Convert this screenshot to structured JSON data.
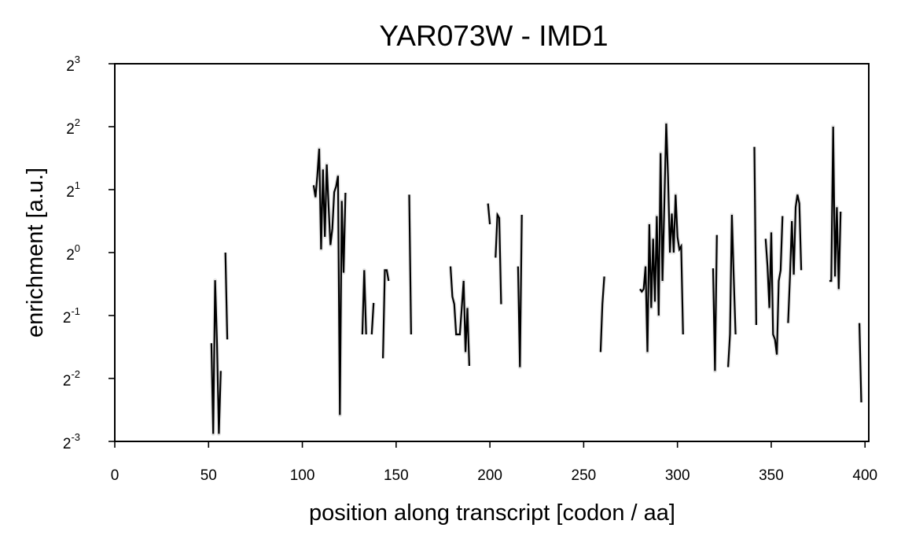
{
  "chart_data": {
    "type": "line",
    "title": "YAR073W - IMD1",
    "xlabel": "position along transcript [codon / aa]",
    "ylabel": "enrichment [a.u.]",
    "xlim": [
      0,
      402
    ],
    "ylim": [
      -3,
      3
    ],
    "y_scale": "log2",
    "x_ticks": [
      "0",
      "50",
      "100",
      "150",
      "200",
      "250",
      "300",
      "350",
      "400"
    ],
    "y_ticks": [
      {
        "base": "2",
        "exp": "3"
      },
      {
        "base": "2",
        "exp": "2"
      },
      {
        "base": "2",
        "exp": "1"
      },
      {
        "base": "2",
        "exp": "0"
      },
      {
        "base": "2",
        "exp": "-1"
      },
      {
        "base": "2",
        "exp": "-2"
      },
      {
        "base": "2",
        "exp": "-3"
      }
    ],
    "grid": false,
    "line_color": "#000000",
    "band_color": "#c8c8c8",
    "segments": [
      [
        [
          51.5,
          -1.44
        ],
        [
          52.5,
          -2.88
        ],
        [
          53.5,
          -0.44
        ],
        [
          54.5,
          -1.44
        ],
        [
          55.5,
          -2.88
        ],
        [
          56.5,
          -1.88
        ]
      ],
      [
        [
          59,
          0.0
        ],
        [
          60,
          -1.38
        ]
      ],
      [
        [
          106,
          1.07
        ],
        [
          107,
          0.88
        ],
        [
          108,
          1.22
        ],
        [
          109,
          1.65
        ],
        [
          110,
          0.05
        ],
        [
          111,
          1.32
        ],
        [
          112,
          0.25
        ],
        [
          113,
          1.4
        ],
        [
          114,
          0.72
        ],
        [
          115,
          0.12
        ],
        [
          116,
          0.38
        ],
        [
          117,
          0.96
        ],
        [
          118,
          1.05
        ],
        [
          119,
          1.22
        ],
        [
          120,
          -2.58
        ],
        [
          121,
          0.82
        ],
        [
          122,
          -0.32
        ],
        [
          123,
          0.95
        ]
      ],
      [
        [
          132,
          -1.3
        ],
        [
          133,
          -0.28
        ],
        [
          134,
          -1.3
        ]
      ],
      [
        [
          137,
          -1.3
        ],
        [
          138,
          -0.8
        ]
      ],
      [
        [
          143,
          -1.68
        ],
        [
          144,
          -0.28
        ],
        [
          145,
          -0.28
        ],
        [
          146,
          -0.45
        ]
      ],
      [
        [
          157,
          0.92
        ],
        [
          158,
          -1.3
        ]
      ],
      [
        [
          179,
          -0.22
        ],
        [
          180,
          -0.7
        ],
        [
          181,
          -0.82
        ],
        [
          182,
          -1.3
        ],
        [
          183,
          -1.3
        ],
        [
          184,
          -1.3
        ],
        [
          185,
          -0.88
        ],
        [
          186,
          -0.45
        ],
        [
          187,
          -1.58
        ],
        [
          188,
          -0.88
        ],
        [
          189,
          -1.8
        ]
      ],
      [
        [
          199,
          0.78
        ],
        [
          200,
          0.45
        ]
      ],
      [
        [
          203,
          -0.08
        ],
        [
          204,
          0.6
        ],
        [
          205,
          0.55
        ],
        [
          206,
          -0.82
        ]
      ],
      [
        [
          215,
          -0.22
        ],
        [
          216,
          -1.82
        ],
        [
          217,
          0.6
        ]
      ],
      [
        [
          259,
          -1.58
        ],
        [
          260,
          -0.82
        ],
        [
          261,
          -0.38
        ]
      ],
      [
        [
          280,
          -0.58
        ],
        [
          281,
          -0.62
        ],
        [
          282,
          -0.58
        ],
        [
          283,
          -0.22
        ],
        [
          284,
          -1.58
        ],
        [
          285,
          0.45
        ],
        [
          286,
          -0.88
        ],
        [
          287,
          0.22
        ],
        [
          288,
          -0.78
        ],
        [
          289,
          0.58
        ],
        [
          290,
          -1.0
        ],
        [
          291,
          1.58
        ],
        [
          292,
          -0.45
        ],
        [
          293,
          0.78
        ],
        [
          294,
          2.05
        ],
        [
          295,
          1.2
        ],
        [
          296,
          0.0
        ],
        [
          297,
          0.62
        ],
        [
          298,
          0.0
        ],
        [
          299,
          0.92
        ],
        [
          300,
          0.25
        ],
        [
          301,
          0.05
        ],
        [
          302,
          0.1
        ],
        [
          303,
          -1.3
        ]
      ],
      [
        [
          319,
          -0.25
        ],
        [
          320,
          -1.88
        ],
        [
          321,
          0.28
        ]
      ],
      [
        [
          327,
          -1.82
        ],
        [
          328,
          -1.3
        ],
        [
          329,
          0.6
        ],
        [
          330,
          -0.38
        ],
        [
          331,
          -1.3
        ]
      ],
      [
        [
          341,
          1.68
        ],
        [
          342,
          -1.15
        ]
      ],
      [
        [
          347,
          0.22
        ],
        [
          348,
          -0.22
        ],
        [
          349,
          -0.88
        ],
        [
          350,
          0.32
        ],
        [
          351,
          -1.3
        ],
        [
          352,
          -1.38
        ],
        [
          353,
          -1.62
        ],
        [
          354,
          -0.45
        ],
        [
          355,
          -0.28
        ],
        [
          356,
          0.58
        ]
      ],
      [
        [
          359,
          -1.12
        ],
        [
          360,
          -0.38
        ],
        [
          361,
          0.5
        ],
        [
          362,
          -0.35
        ],
        [
          363,
          0.72
        ],
        [
          364,
          0.92
        ],
        [
          365,
          0.78
        ],
        [
          366,
          -0.28
        ]
      ],
      [
        [
          381,
          -0.45
        ],
        [
          382,
          -0.45
        ],
        [
          383,
          2.0
        ],
        [
          384,
          -0.38
        ],
        [
          385,
          0.72
        ],
        [
          386,
          -0.58
        ],
        [
          387,
          0.65
        ]
      ],
      [
        [
          397,
          -1.12
        ],
        [
          398,
          -2.38
        ]
      ]
    ]
  }
}
